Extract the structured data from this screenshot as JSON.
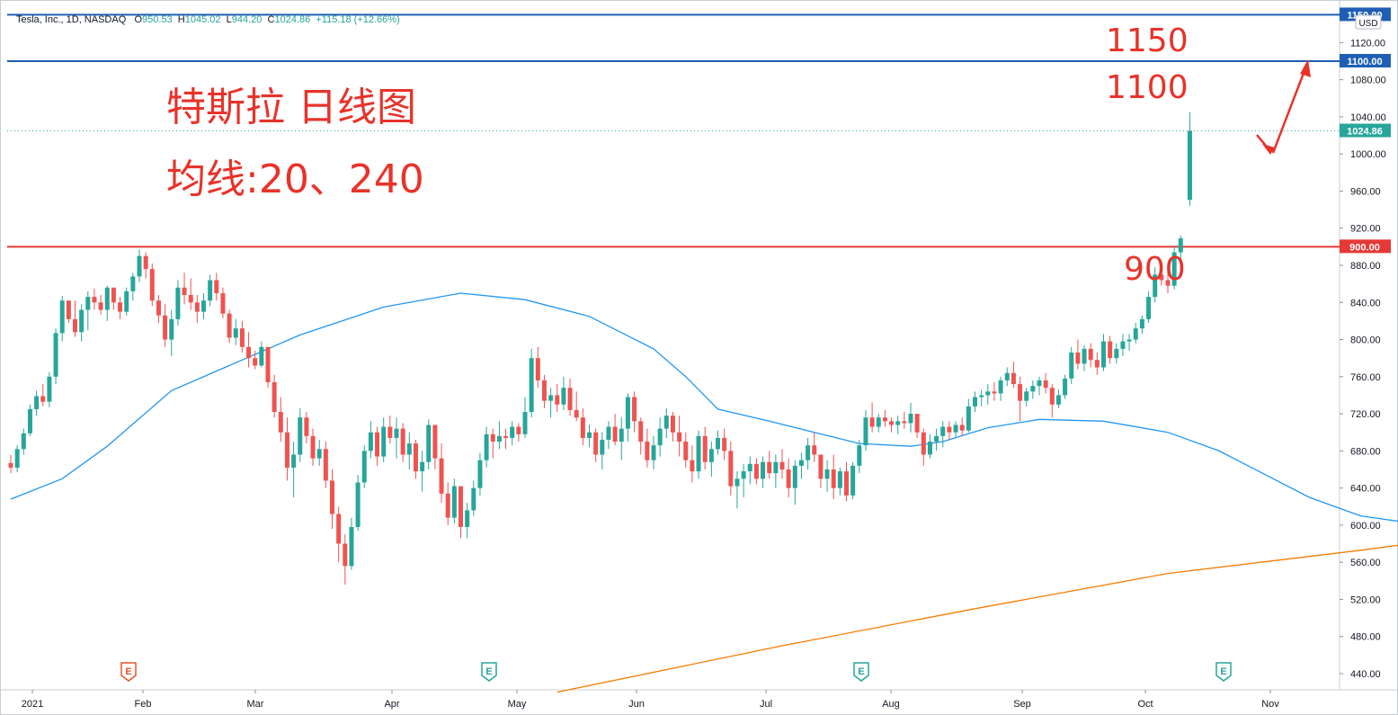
{
  "header": {
    "symbol": "Tesla, Inc., 1D, NASDAQ",
    "open_label": "O",
    "open": "950.53",
    "high_label": "H",
    "high": "1045.02",
    "low_label": "L",
    "low": "944.20",
    "close_label": "C",
    "close": "1024.86",
    "change": "+115.18 (+12.66%)"
  },
  "annotations": {
    "title": "特斯拉 日线图",
    "subtitle": "均线:20、240",
    "label_1150": "1150",
    "label_1100": "1100",
    "label_900": "900"
  },
  "colors": {
    "up": "#26a69a",
    "down": "#ef5350",
    "ma20": "#2196f3",
    "ma240": "#f57c00",
    "line_1150": "#1e5fb4",
    "line_1100": "#1e5fb4",
    "line_900": "#e53935",
    "annotation": "#e8332a"
  },
  "icons": {
    "earnings": "earnings-marker-icon",
    "arrow": "red-arrow-icon"
  },
  "chart_data": {
    "type": "candlestick",
    "currency": "USD",
    "ylim": [
      420,
      1160
    ],
    "y_ticks": [
      "440.00",
      "480.00",
      "520.00",
      "560.00",
      "600.00",
      "640.00",
      "680.00",
      "720.00",
      "760.00",
      "800.00",
      "840.00",
      "880.00",
      "920.00",
      "960.00",
      "1000.00",
      "1040.00",
      "1080.00",
      "1120.00"
    ],
    "x_labels": [
      "2021",
      "Feb",
      "Mar",
      "Apr",
      "May",
      "Jun",
      "Jul",
      "Aug",
      "Sep",
      "Oct",
      "Nov"
    ],
    "last_price": "1024.86",
    "horizontal_lines": [
      {
        "value": 1150,
        "label": "1150.00",
        "color": "#1e5fb4"
      },
      {
        "value": 1100,
        "label": "1100.00",
        "color": "#1e5fb4"
      },
      {
        "value": 900,
        "label": "900.00",
        "color": "#e53935"
      }
    ],
    "earnings_markers": [
      {
        "month": "Jan",
        "kind": "E",
        "outcome": "miss"
      },
      {
        "month": "Apr",
        "kind": "E",
        "outcome": "beat"
      },
      {
        "month": "Jul",
        "kind": "E",
        "outcome": "beat"
      },
      {
        "month": "Oct",
        "kind": "E",
        "outcome": "beat"
      }
    ],
    "ma20": [
      [
        0,
        628
      ],
      [
        8,
        650
      ],
      [
        15,
        685
      ],
      [
        25,
        745
      ],
      [
        45,
        805
      ],
      [
        58,
        835
      ],
      [
        70,
        850
      ],
      [
        80,
        843
      ],
      [
        90,
        825
      ],
      [
        100,
        790
      ],
      [
        105,
        760
      ],
      [
        110,
        725
      ],
      [
        118,
        712
      ],
      [
        125,
        700
      ],
      [
        132,
        688
      ],
      [
        140,
        685
      ],
      [
        145,
        690
      ],
      [
        152,
        705
      ],
      [
        160,
        714
      ],
      [
        170,
        712
      ],
      [
        180,
        700
      ],
      [
        188,
        680
      ],
      [
        195,
        655
      ],
      [
        202,
        630
      ],
      [
        210,
        610
      ],
      [
        220,
        600
      ],
      [
        230,
        600
      ],
      [
        240,
        605
      ],
      [
        250,
        612
      ],
      [
        258,
        622
      ],
      [
        265,
        640
      ],
      [
        272,
        650
      ],
      [
        278,
        657
      ],
      [
        284,
        658
      ],
      [
        290,
        650
      ],
      [
        297,
        662
      ],
      [
        302,
        675
      ],
      [
        310,
        685
      ],
      [
        318,
        700
      ],
      [
        325,
        712
      ],
      [
        332,
        722
      ],
      [
        338,
        740
      ],
      [
        345,
        755
      ],
      [
        355,
        770
      ],
      [
        362,
        786
      ],
      [
        370,
        805
      ],
      [
        376,
        826
      ]
    ],
    "ma240": [
      [
        85,
        420
      ],
      [
        120,
        470
      ],
      [
        150,
        510
      ],
      [
        180,
        548
      ],
      [
        210,
        573
      ],
      [
        245,
        605
      ],
      [
        270,
        625
      ],
      [
        295,
        645
      ],
      [
        325,
        665
      ],
      [
        360,
        688
      ],
      [
        376,
        696
      ]
    ],
    "candles_ohlc": [
      [
        667,
        676,
        656,
        662
      ],
      [
        662,
        686,
        657,
        682
      ],
      [
        682,
        704,
        676,
        699
      ],
      [
        699,
        730,
        696,
        725
      ],
      [
        725,
        745,
        718,
        739
      ],
      [
        739,
        752,
        728,
        733
      ],
      [
        733,
        765,
        727,
        760
      ],
      [
        760,
        812,
        752,
        807
      ],
      [
        807,
        847,
        798,
        842
      ],
      [
        842,
        836,
        818,
        822
      ],
      [
        822,
        842,
        803,
        808
      ],
      [
        808,
        838,
        798,
        832
      ],
      [
        832,
        852,
        810,
        846
      ],
      [
        846,
        855,
        832,
        840
      ],
      [
        840,
        848,
        827,
        832
      ],
      [
        832,
        858,
        820,
        856
      ],
      [
        856,
        854,
        832,
        840
      ],
      [
        840,
        846,
        822,
        830
      ],
      [
        830,
        856,
        826,
        852
      ],
      [
        852,
        872,
        842,
        868
      ],
      [
        868,
        897,
        862,
        890
      ],
      [
        890,
        894,
        866,
        876
      ],
      [
        876,
        882,
        836,
        842
      ],
      [
        842,
        848,
        818,
        826
      ],
      [
        826,
        838,
        792,
        800
      ],
      [
        800,
        832,
        782,
        822
      ],
      [
        822,
        864,
        815,
        856
      ],
      [
        856,
        872,
        838,
        848
      ],
      [
        848,
        866,
        832,
        840
      ],
      [
        840,
        848,
        818,
        830
      ],
      [
        830,
        850,
        822,
        842
      ],
      [
        842,
        870,
        836,
        864
      ],
      [
        864,
        872,
        842,
        850
      ],
      [
        850,
        856,
        823,
        828
      ],
      [
        828,
        832,
        796,
        802
      ],
      [
        802,
        822,
        794,
        812
      ],
      [
        812,
        820,
        786,
        792
      ],
      [
        792,
        808,
        770,
        780
      ],
      [
        780,
        788,
        768,
        772
      ],
      [
        772,
        798,
        770,
        792
      ],
      [
        792,
        786,
        748,
        754
      ],
      [
        754,
        762,
        716,
        722
      ],
      [
        722,
        738,
        690,
        700
      ],
      [
        700,
        716,
        648,
        662
      ],
      [
        662,
        690,
        630,
        676
      ],
      [
        676,
        726,
        668,
        716
      ],
      [
        716,
        722,
        688,
        696
      ],
      [
        696,
        704,
        664,
        672
      ],
      [
        672,
        692,
        664,
        682
      ],
      [
        682,
        690,
        640,
        648
      ],
      [
        648,
        660,
        596,
        612
      ],
      [
        612,
        620,
        560,
        580
      ],
      [
        580,
        590,
        536,
        556
      ],
      [
        556,
        608,
        552,
        598
      ],
      [
        598,
        654,
        594,
        646
      ],
      [
        646,
        686,
        640,
        680
      ],
      [
        680,
        712,
        672,
        700
      ],
      [
        700,
        706,
        664,
        674
      ],
      [
        674,
        716,
        668,
        706
      ],
      [
        706,
        718,
        688,
        694
      ],
      [
        694,
        716,
        672,
        704
      ],
      [
        704,
        710,
        668,
        676
      ],
      [
        676,
        700,
        660,
        688
      ],
      [
        688,
        692,
        650,
        658
      ],
      [
        658,
        680,
        636,
        668
      ],
      [
        668,
        714,
        660,
        708
      ],
      [
        708,
        700,
        660,
        672
      ],
      [
        672,
        688,
        624,
        634
      ],
      [
        634,
        646,
        600,
        608
      ],
      [
        608,
        650,
        602,
        642
      ],
      [
        642,
        632,
        586,
        598
      ],
      [
        598,
        624,
        586,
        616
      ],
      [
        616,
        648,
        610,
        640
      ],
      [
        640,
        678,
        632,
        670
      ],
      [
        670,
        706,
        662,
        698
      ],
      [
        698,
        704,
        672,
        690
      ],
      [
        690,
        712,
        682,
        696
      ],
      [
        696,
        704,
        682,
        694
      ],
      [
        694,
        712,
        686,
        706
      ],
      [
        706,
        710,
        690,
        698
      ],
      [
        698,
        738,
        694,
        722
      ],
      [
        722,
        790,
        716,
        780
      ],
      [
        780,
        792,
        748,
        756
      ],
      [
        756,
        762,
        726,
        734
      ],
      [
        734,
        748,
        716,
        740
      ],
      [
        740,
        752,
        722,
        730
      ],
      [
        730,
        760,
        724,
        748
      ],
      [
        748,
        758,
        718,
        724
      ],
      [
        724,
        744,
        712,
        716
      ],
      [
        716,
        726,
        686,
        694
      ],
      [
        694,
        708,
        684,
        700
      ],
      [
        700,
        704,
        668,
        676
      ],
      [
        676,
        700,
        660,
        692
      ],
      [
        692,
        712,
        682,
        706
      ],
      [
        706,
        720,
        686,
        690
      ],
      [
        690,
        716,
        670,
        704
      ],
      [
        704,
        742,
        690,
        738
      ],
      [
        738,
        744,
        700,
        712
      ],
      [
        712,
        716,
        676,
        690
      ],
      [
        690,
        704,
        662,
        670
      ],
      [
        670,
        696,
        660,
        686
      ],
      [
        686,
        716,
        674,
        704
      ],
      [
        704,
        726,
        694,
        718
      ],
      [
        718,
        722,
        690,
        700
      ],
      [
        700,
        718,
        674,
        690
      ],
      [
        690,
        700,
        662,
        670
      ],
      [
        670,
        686,
        646,
        658
      ],
      [
        658,
        702,
        650,
        696
      ],
      [
        696,
        706,
        660,
        668
      ],
      [
        668,
        690,
        652,
        682
      ],
      [
        682,
        702,
        676,
        694
      ],
      [
        694,
        704,
        670,
        680
      ],
      [
        680,
        690,
        632,
        642
      ],
      [
        642,
        658,
        618,
        650
      ],
      [
        650,
        666,
        630,
        658
      ],
      [
        658,
        674,
        644,
        666
      ],
      [
        666,
        672,
        644,
        650
      ],
      [
        650,
        674,
        640,
        668
      ],
      [
        668,
        680,
        650,
        656
      ],
      [
        656,
        676,
        640,
        668
      ],
      [
        668,
        682,
        650,
        660
      ],
      [
        660,
        672,
        630,
        640
      ],
      [
        640,
        670,
        622,
        664
      ],
      [
        664,
        678,
        650,
        670
      ],
      [
        670,
        694,
        660,
        686
      ],
      [
        686,
        700,
        668,
        676
      ],
      [
        676,
        670,
        640,
        650
      ],
      [
        650,
        670,
        636,
        660
      ],
      [
        660,
        676,
        628,
        640
      ],
      [
        640,
        662,
        632,
        658
      ],
      [
        658,
        668,
        626,
        632
      ],
      [
        632,
        668,
        628,
        664
      ],
      [
        664,
        692,
        656,
        686
      ],
      [
        686,
        724,
        680,
        716
      ],
      [
        716,
        732,
        700,
        706
      ],
      [
        706,
        720,
        700,
        716
      ],
      [
        716,
        724,
        706,
        712
      ],
      [
        712,
        716,
        700,
        708
      ],
      [
        708,
        718,
        698,
        712
      ],
      [
        712,
        722,
        704,
        710
      ],
      [
        710,
        732,
        700,
        720
      ],
      [
        720,
        716,
        694,
        700
      ],
      [
        700,
        704,
        664,
        676
      ],
      [
        676,
        698,
        672,
        690
      ],
      [
        690,
        704,
        680,
        696
      ],
      [
        696,
        712,
        684,
        706
      ],
      [
        706,
        712,
        692,
        700
      ],
      [
        700,
        712,
        694,
        708
      ],
      [
        708,
        716,
        696,
        702
      ],
      [
        702,
        736,
        700,
        728
      ],
      [
        728,
        744,
        722,
        738
      ],
      [
        738,
        746,
        728,
        740
      ],
      [
        740,
        752,
        730,
        744
      ],
      [
        744,
        754,
        734,
        742
      ],
      [
        742,
        760,
        734,
        756
      ],
      [
        756,
        770,
        750,
        764
      ],
      [
        764,
        776,
        748,
        752
      ],
      [
        752,
        760,
        712,
        734
      ],
      [
        734,
        748,
        728,
        744
      ],
      [
        744,
        756,
        736,
        750
      ],
      [
        750,
        760,
        740,
        756
      ],
      [
        756,
        764,
        742,
        748
      ],
      [
        748,
        752,
        716,
        730
      ],
      [
        730,
        746,
        726,
        740
      ],
      [
        740,
        762,
        736,
        758
      ],
      [
        758,
        792,
        752,
        786
      ],
      [
        786,
        800,
        768,
        774
      ],
      [
        774,
        794,
        766,
        790
      ],
      [
        790,
        796,
        770,
        778
      ],
      [
        778,
        786,
        762,
        770
      ],
      [
        770,
        806,
        766,
        798
      ],
      [
        798,
        804,
        774,
        780
      ],
      [
        780,
        796,
        774,
        790
      ],
      [
        790,
        806,
        782,
        798
      ],
      [
        798,
        806,
        788,
        800
      ],
      [
        800,
        818,
        796,
        812
      ],
      [
        812,
        826,
        806,
        822
      ],
      [
        822,
        852,
        818,
        846
      ],
      [
        846,
        878,
        840,
        870
      ],
      [
        870,
        884,
        858,
        864
      ],
      [
        864,
        878,
        850,
        858
      ],
      [
        858,
        900,
        854,
        894
      ],
      [
        894,
        912,
        880,
        909
      ],
      [
        950.53,
        1045.02,
        944.2,
        1024.86
      ]
    ]
  }
}
